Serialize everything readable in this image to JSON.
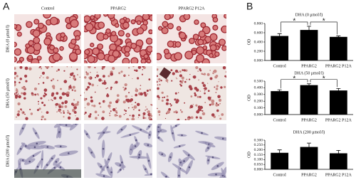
{
  "panel_a": {
    "label": "A",
    "columns": [
      "Control",
      "PPARG2",
      "PPARG2 P12A"
    ],
    "rows": [
      "DHA  (0 μmol/l)",
      "DHA  (50 μmol/l)",
      "DHA  (200 μmol/l)"
    ]
  },
  "panel_b": {
    "label": "B"
  },
  "chart_data": [
    {
      "type": "bar",
      "title": "DHA (0 μmol/l)",
      "y_label": "OD",
      "categories": [
        "Control",
        "PPARG2",
        "PPARG2 P12A"
      ],
      "values": [
        0.53,
        0.66,
        0.51
      ],
      "errors": [
        0.05,
        0.08,
        0.02
      ],
      "color": "#000000",
      "ylim": [
        0,
        0.8
      ],
      "yticks": [
        {
          "value": 0,
          "label": "0.000"
        },
        {
          "value": 0.2,
          "label": "0.200"
        },
        {
          "value": 0.4,
          "label": "0.400"
        },
        {
          "value": 0.6,
          "label": "0.600"
        },
        {
          "value": 0.8,
          "label": "0.800"
        }
      ],
      "annotations": [
        "*",
        "*"
      ]
    },
    {
      "type": "bar",
      "title": "DHA (50 μmol/l)",
      "y_label": "OD",
      "categories": [
        "Control",
        "PPARG2",
        "PPARG2 P12A"
      ],
      "values": [
        0.35,
        0.44,
        0.36
      ],
      "errors": [
        0.02,
        0.02,
        0.03
      ],
      "color": "#000000",
      "ylim": [
        0,
        0.5
      ],
      "yticks": [
        {
          "value": 0,
          "label": "0.000"
        },
        {
          "value": 0.1,
          "label": "0.100"
        },
        {
          "value": 0.2,
          "label": "0.200"
        },
        {
          "value": 0.3,
          "label": "0.300"
        },
        {
          "value": 0.4,
          "label": "0.400"
        },
        {
          "value": 0.5,
          "label": "0.500"
        }
      ],
      "annotations": [
        "*",
        "*"
      ]
    },
    {
      "type": "bar",
      "title": "DHA (200 μmol/l)",
      "y_label": "OD",
      "categories": [
        "Control",
        "PPARG2",
        "PPARG2 P12A"
      ],
      "values": [
        0.17,
        0.23,
        0.165
      ],
      "errors": [
        0.03,
        0.04,
        0.03
      ],
      "color": "#000000",
      "ylim": [
        0,
        0.3
      ],
      "yticks": [
        {
          "value": 0,
          "label": "0.000"
        },
        {
          "value": 0.05,
          "label": "0.050"
        },
        {
          "value": 0.1,
          "label": "0.100"
        },
        {
          "value": 0.15,
          "label": "0.150"
        },
        {
          "value": 0.2,
          "label": "0.200"
        },
        {
          "value": 0.25,
          "label": "0.250"
        },
        {
          "value": 0.3,
          "label": "0.300"
        }
      ]
    }
  ]
}
